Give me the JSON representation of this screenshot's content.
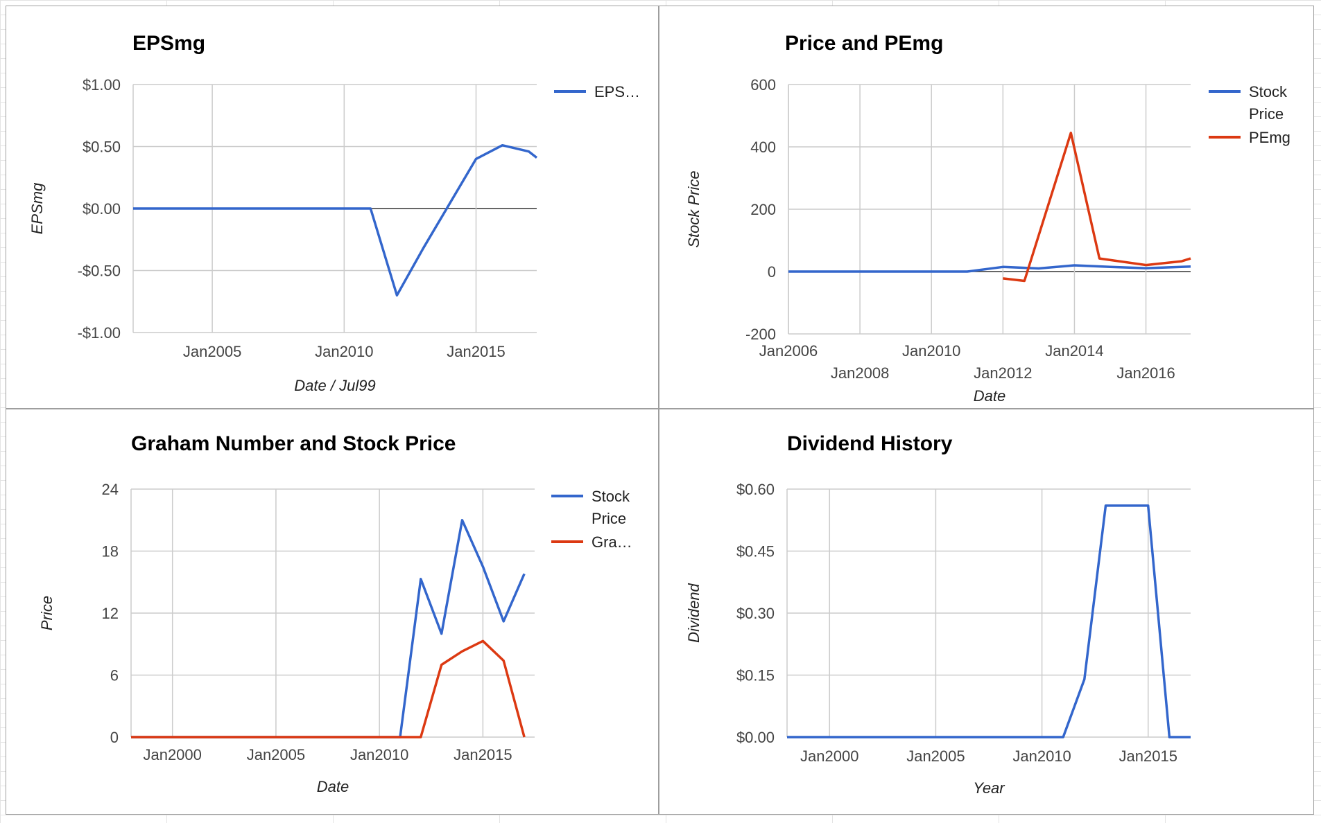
{
  "chart_data": [
    {
      "type": "line",
      "title": "EPSmg",
      "xlabel": "Date / Jul99",
      "ylabel": "EPSmg",
      "x_ticks": [
        {
          "label": "Jan2005",
          "x": 2005
        },
        {
          "label": "Jan2010",
          "x": 2010
        },
        {
          "label": "Jan2015",
          "x": 2015
        }
      ],
      "y_ticks": [
        {
          "label": "$1.00",
          "y": 1
        },
        {
          "label": "$0.50",
          "y": 0.5
        },
        {
          "label": "$0.00",
          "y": 0
        },
        {
          "label": "-$0.50",
          "y": -0.5
        },
        {
          "label": "-$1.00",
          "y": -1
        }
      ],
      "xlim": [
        2002,
        2017.3
      ],
      "ylim": [
        -1,
        1
      ],
      "grid": true,
      "legend": "right",
      "series": [
        {
          "name": "EPS…",
          "color": "#3366cc",
          "points": [
            [
              2002,
              0
            ],
            [
              2011,
              0
            ],
            [
              2012,
              -0.7
            ],
            [
              2013,
              -0.32
            ],
            [
              2015,
              0.4
            ],
            [
              2016,
              0.51
            ],
            [
              2017,
              0.46
            ],
            [
              2017.3,
              0.41
            ]
          ]
        }
      ]
    },
    {
      "type": "line",
      "title": "Price and PEmg",
      "xlabel": "Date",
      "ylabel": "Stock Price",
      "x_ticks": [
        {
          "label": "Jan2006",
          "x": 2006,
          "row": 0
        },
        {
          "label": "Jan2008",
          "x": 2008,
          "row": 1
        },
        {
          "label": "Jan2010",
          "x": 2010,
          "row": 0
        },
        {
          "label": "Jan2012",
          "x": 2012,
          "row": 1
        },
        {
          "label": "Jan2014",
          "x": 2014,
          "row": 0
        },
        {
          "label": "Jan2016",
          "x": 2016,
          "row": 1
        }
      ],
      "y_ticks": [
        {
          "label": "600",
          "y": 600
        },
        {
          "label": "400",
          "y": 400
        },
        {
          "label": "200",
          "y": 200
        },
        {
          "label": "0",
          "y": 0
        },
        {
          "label": "-200",
          "y": -200
        }
      ],
      "xlim": [
        2006,
        2017.25
      ],
      "ylim": [
        -200,
        600
      ],
      "grid": true,
      "legend": "right",
      "series": [
        {
          "name": "Stock Price",
          "color": "#3366cc",
          "points": [
            [
              2006,
              0
            ],
            [
              2011,
              0
            ],
            [
              2012,
              15
            ],
            [
              2013,
              10
            ],
            [
              2014,
              20
            ],
            [
              2015,
              15
            ],
            [
              2016,
              11
            ],
            [
              2017.25,
              16
            ]
          ]
        },
        {
          "name": "PEmg",
          "color": "#dc3912",
          "points": [
            [
              2012,
              -22
            ],
            [
              2012.6,
              -30
            ],
            [
              2013.9,
              445
            ],
            [
              2014.7,
              42
            ],
            [
              2016,
              21
            ],
            [
              2017,
              33
            ],
            [
              2017.25,
              42
            ]
          ]
        }
      ]
    },
    {
      "type": "line",
      "title": "Graham Number and Stock Price",
      "xlabel": "Date",
      "ylabel": "Price",
      "x_ticks": [
        {
          "label": "Jan2000",
          "x": 2000
        },
        {
          "label": "Jan2005",
          "x": 2005
        },
        {
          "label": "Jan2010",
          "x": 2010
        },
        {
          "label": "Jan2015",
          "x": 2015
        }
      ],
      "y_ticks": [
        {
          "label": "24",
          "y": 24
        },
        {
          "label": "18",
          "y": 18
        },
        {
          "label": "12",
          "y": 12
        },
        {
          "label": "6",
          "y": 6
        },
        {
          "label": "0",
          "y": 0
        }
      ],
      "xlim": [
        1998,
        2017.5
      ],
      "ylim": [
        0,
        24
      ],
      "grid": true,
      "legend": "right",
      "series": [
        {
          "name": "Stock Price",
          "color": "#3366cc",
          "points": [
            [
              1998,
              0
            ],
            [
              2011,
              0
            ],
            [
              2012,
              15.3
            ],
            [
              2013,
              10
            ],
            [
              2014,
              21
            ],
            [
              2015,
              16.5
            ],
            [
              2016,
              11.2
            ],
            [
              2017,
              15.8
            ]
          ]
        },
        {
          "name": "Gra…",
          "color": "#dc3912",
          "points": [
            [
              1998,
              0
            ],
            [
              2012,
              0
            ],
            [
              2013,
              7
            ],
            [
              2014,
              8.3
            ],
            [
              2015,
              9.3
            ],
            [
              2016,
              7.4
            ],
            [
              2017,
              0
            ]
          ]
        }
      ]
    },
    {
      "type": "line",
      "title": "Dividend History",
      "xlabel": "Year",
      "ylabel": "Dividend",
      "x_ticks": [
        {
          "label": "Jan2000",
          "x": 2000
        },
        {
          "label": "Jan2005",
          "x": 2005
        },
        {
          "label": "Jan2010",
          "x": 2010
        },
        {
          "label": "Jan2015",
          "x": 2015
        }
      ],
      "y_ticks": [
        {
          "label": "$0.60",
          "y": 0.6
        },
        {
          "label": "$0.45",
          "y": 0.45
        },
        {
          "label": "$0.30",
          "y": 0.3
        },
        {
          "label": "$0.15",
          "y": 0.15
        },
        {
          "label": "$0.00",
          "y": 0
        }
      ],
      "xlim": [
        1998,
        2017
      ],
      "ylim": [
        0,
        0.6
      ],
      "grid": true,
      "legend": "none",
      "series": [
        {
          "name": "",
          "color": "#3366cc",
          "points": [
            [
              1998,
              0
            ],
            [
              2011,
              0
            ],
            [
              2012,
              0.14
            ],
            [
              2013,
              0.56
            ],
            [
              2014,
              0.56
            ],
            [
              2015,
              0.56
            ],
            [
              2016,
              0
            ],
            [
              2017,
              0
            ]
          ]
        }
      ]
    }
  ]
}
